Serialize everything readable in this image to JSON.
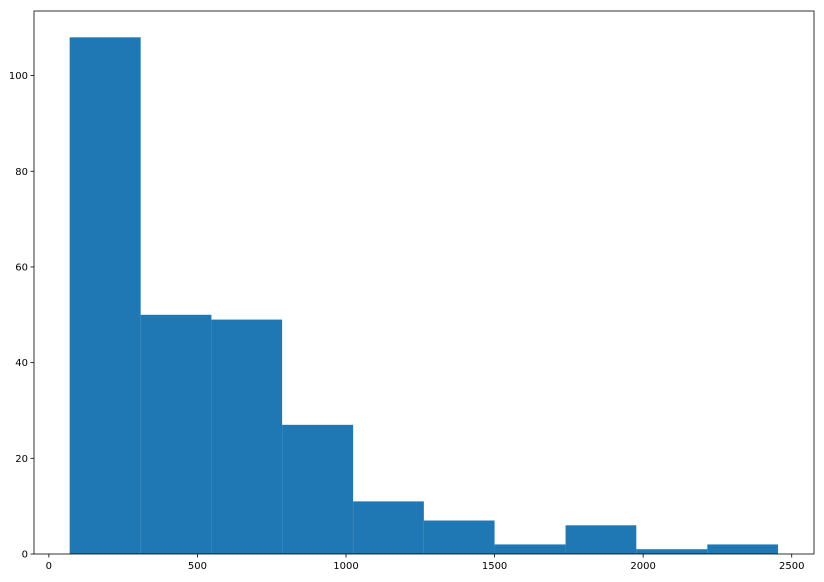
{
  "chart_data": {
    "type": "bar",
    "subtype": "histogram",
    "bins": [
      {
        "x0": 70,
        "x1": 309,
        "count": 108
      },
      {
        "x0": 309,
        "x1": 547,
        "count": 50
      },
      {
        "x0": 547,
        "x1": 785,
        "count": 49
      },
      {
        "x0": 785,
        "x1": 1024,
        "count": 27
      },
      {
        "x0": 1024,
        "x1": 1262,
        "count": 11
      },
      {
        "x0": 1262,
        "x1": 1500,
        "count": 7
      },
      {
        "x0": 1500,
        "x1": 1739,
        "count": 2
      },
      {
        "x0": 1739,
        "x1": 1977,
        "count": 6
      },
      {
        "x0": 1977,
        "x1": 2216,
        "count": 1
      },
      {
        "x0": 2216,
        "x1": 2454,
        "count": 2
      }
    ],
    "title": "",
    "xlabel": "",
    "ylabel": "",
    "xlim": [
      -50,
      2575
    ],
    "ylim": [
      0,
      113.5
    ],
    "xticks": [
      0,
      500,
      1000,
      1500,
      2000,
      2500
    ],
    "yticks": [
      0,
      20,
      40,
      60,
      80,
      100
    ],
    "xtick_labels": [
      "0",
      "500",
      "1000",
      "1500",
      "2000",
      "2500"
    ],
    "ytick_labels": [
      "0",
      "20",
      "40",
      "60",
      "80",
      "100"
    ],
    "grid": false,
    "legend": "none",
    "colors": {
      "bar": "#1f77b4",
      "axes": "#000000",
      "background": "#ffffff"
    }
  }
}
